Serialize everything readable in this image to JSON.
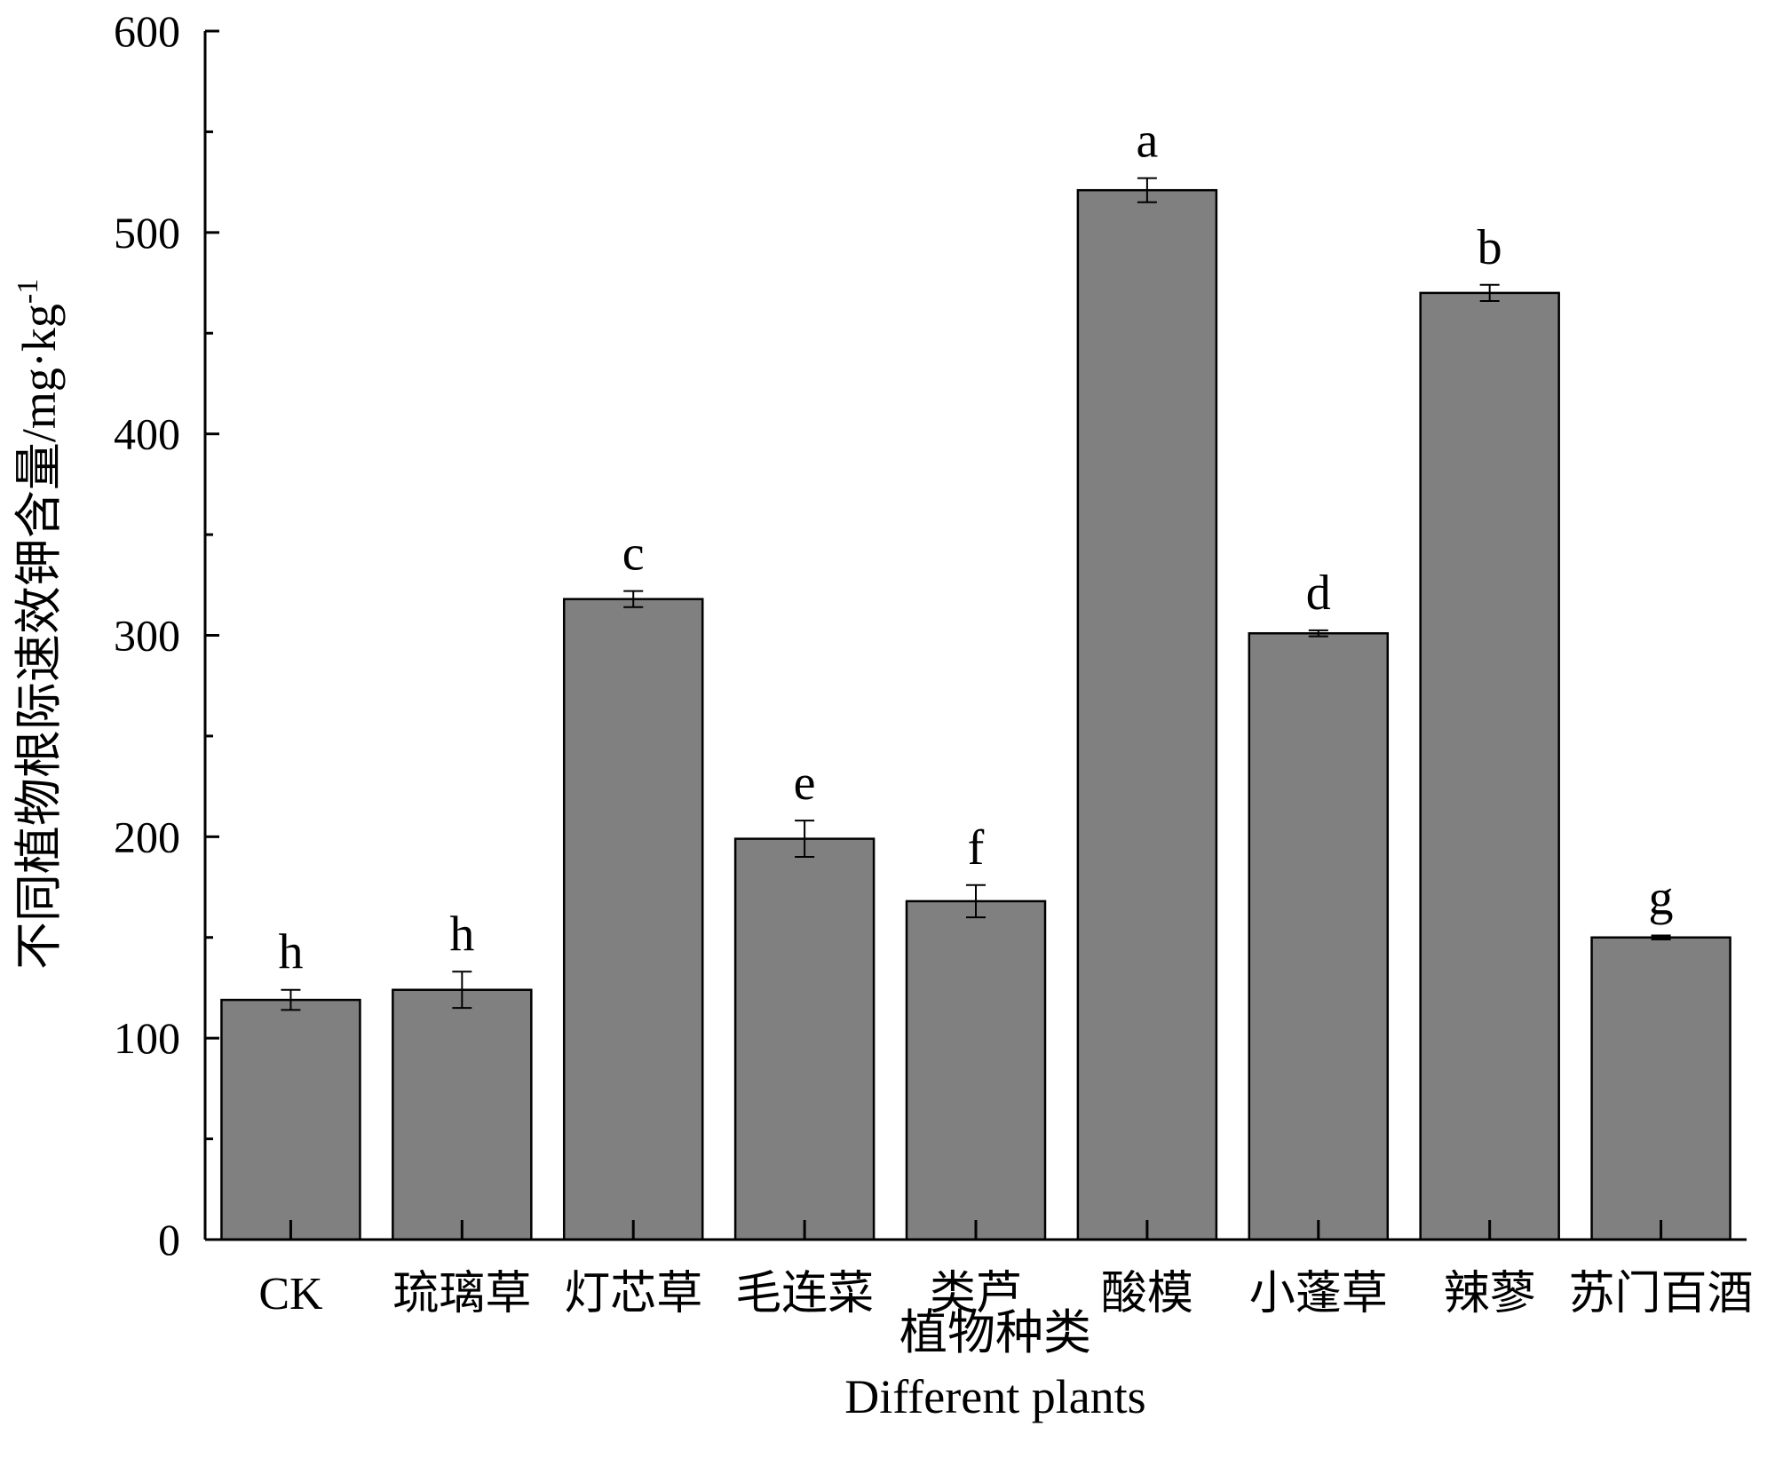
{
  "chart_data": {
    "type": "bar",
    "categories": [
      "CK",
      "琉璃草",
      "灯芯草",
      "毛连菜",
      "类芦",
      "酸模",
      "小蓬草",
      "辣蓼",
      "苏门百酒"
    ],
    "values": [
      119,
      124,
      318,
      199,
      168,
      521,
      301,
      470,
      150
    ],
    "errors": [
      5,
      9,
      4,
      9,
      8,
      6,
      1.5,
      4,
      1
    ],
    "significance": [
      "h",
      "h",
      "c",
      "e",
      "f",
      "a",
      "d",
      "b",
      "g"
    ],
    "xlabel": "植物种类",
    "xlabel_en": "Different plants",
    "ylabel": "不同植物根际速效钾含量/mg·kg",
    "ylabel_sup": "-1",
    "ylim": [
      0,
      600
    ],
    "yticks": [
      "0",
      "100",
      "200",
      "300",
      "400",
      "500",
      "600"
    ],
    "bar_color": "#808080",
    "grid": false,
    "legend": "none"
  }
}
